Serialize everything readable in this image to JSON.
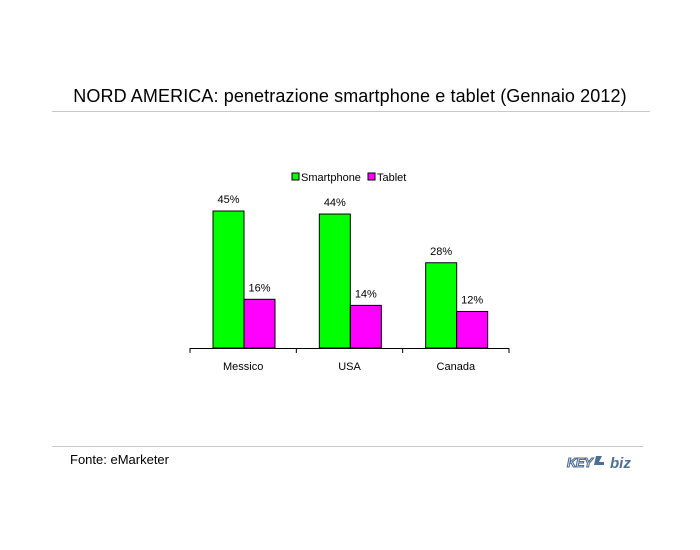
{
  "header": {
    "title": "NORD AMERICA: penetrazione smartphone e tablet (Gennaio 2012)"
  },
  "footer": {
    "source": "Fonte: eMarketer",
    "logo_text": "KEY4biz"
  },
  "chart_data": {
    "type": "bar",
    "categories": [
      "Messico",
      "USA",
      "Canada"
    ],
    "series": [
      {
        "name": "Smartphone",
        "values": [
          45,
          44,
          28
        ],
        "labels": [
          "45%",
          "44%",
          "28%"
        ],
        "color": "#00ff00"
      },
      {
        "name": "Tablet",
        "values": [
          16,
          14,
          12
        ],
        "labels": [
          "16%",
          "14%",
          "12%"
        ],
        "color": "#ff00ff"
      }
    ],
    "ylim": [
      0,
      45
    ],
    "legend": "top",
    "grid": false
  }
}
